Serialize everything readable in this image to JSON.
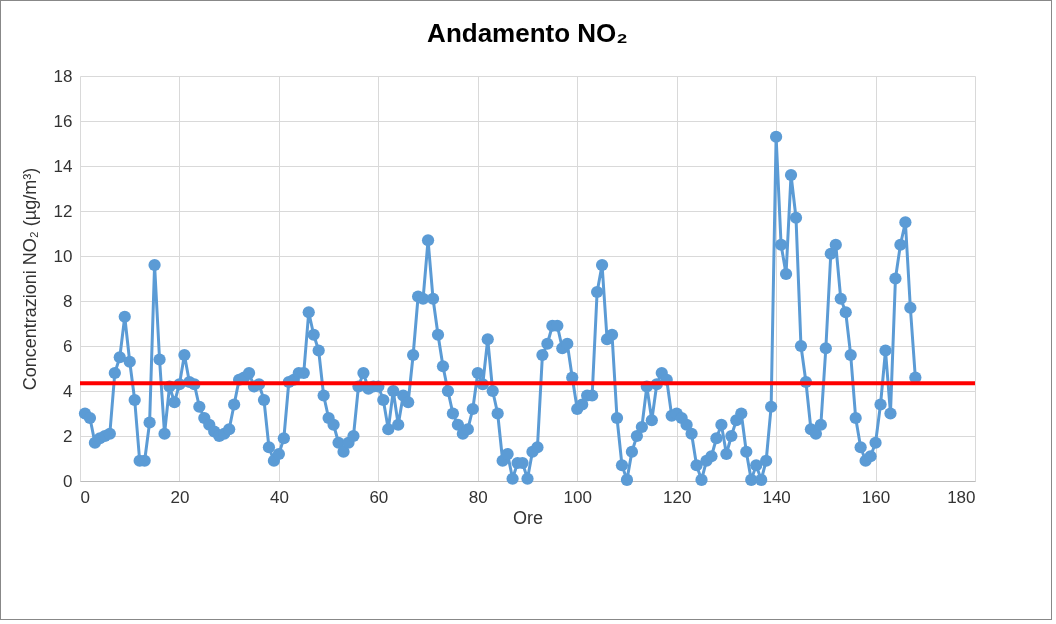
{
  "chart_data": {
    "type": "line",
    "title": "Andamento NO₂",
    "xlabel": "Ore",
    "ylabel": "Concentrazioni NO₂ (µg/m³)",
    "x": [
      1,
      2,
      3,
      4,
      5,
      6,
      7,
      8,
      9,
      10,
      11,
      12,
      13,
      14,
      15,
      16,
      17,
      18,
      19,
      20,
      21,
      22,
      23,
      24,
      25,
      26,
      27,
      28,
      29,
      30,
      31,
      32,
      33,
      34,
      35,
      36,
      37,
      38,
      39,
      40,
      41,
      42,
      43,
      44,
      45,
      46,
      47,
      48,
      49,
      50,
      51,
      52,
      53,
      54,
      55,
      56,
      57,
      58,
      59,
      60,
      61,
      62,
      63,
      64,
      65,
      66,
      67,
      68,
      69,
      70,
      71,
      72,
      73,
      74,
      75,
      76,
      77,
      78,
      79,
      80,
      81,
      82,
      83,
      84,
      85,
      86,
      87,
      88,
      89,
      90,
      91,
      92,
      93,
      94,
      95,
      96,
      97,
      98,
      99,
      100,
      101,
      102,
      103,
      104,
      105,
      106,
      107,
      108,
      109,
      110,
      111,
      112,
      113,
      114,
      115,
      116,
      117,
      118,
      119,
      120,
      121,
      122,
      123,
      124,
      125,
      126,
      127,
      128,
      129,
      130,
      131,
      132,
      133,
      134,
      135,
      136,
      137,
      138,
      139,
      140,
      141,
      142,
      143,
      144,
      145,
      146,
      147,
      148,
      149,
      150,
      151,
      152,
      153,
      154,
      155,
      156,
      157,
      158,
      159,
      160,
      161,
      162,
      163,
      164,
      165,
      166,
      167,
      168
    ],
    "series": [
      {
        "color": "#5b9bd5",
        "values": [
          3.0,
          2.8,
          1.7,
          1.9,
          2.0,
          2.1,
          4.8,
          5.5,
          7.3,
          5.3,
          3.6,
          0.9,
          0.9,
          2.6,
          9.6,
          5.4,
          2.1,
          4.2,
          3.5,
          4.3,
          5.6,
          4.4,
          4.3,
          3.3,
          2.8,
          2.5,
          2.2,
          2.0,
          2.1,
          2.3,
          3.4,
          4.5,
          4.6,
          4.8,
          4.2,
          4.3,
          3.6,
          1.5,
          0.9,
          1.2,
          1.9,
          4.4,
          4.5,
          4.8,
          4.8,
          7.5,
          6.5,
          5.8,
          3.8,
          2.8,
          2.5,
          1.7,
          1.3,
          1.7,
          2.0,
          4.2,
          4.8,
          4.1,
          4.2,
          4.2,
          3.6,
          2.3,
          4.0,
          2.5,
          3.8,
          3.5,
          5.6,
          8.2,
          8.1,
          10.7,
          8.1,
          6.5,
          5.1,
          4.0,
          3.0,
          2.5,
          2.1,
          2.3,
          3.2,
          4.8,
          4.3,
          6.3,
          4.0,
          3.0,
          0.9,
          1.2,
          0.1,
          0.8,
          0.8,
          0.1,
          1.3,
          1.5,
          5.6,
          6.1,
          6.9,
          6.9,
          5.9,
          6.1,
          4.6,
          3.2,
          3.4,
          3.8,
          3.8,
          8.4,
          9.6,
          6.3,
          6.5,
          2.8,
          0.7,
          0.05,
          1.3,
          2.0,
          2.4,
          4.2,
          2.7,
          4.3,
          4.8,
          4.5,
          2.9,
          3.0,
          2.8,
          2.5,
          2.1,
          0.7,
          0.05,
          0.9,
          1.1,
          1.9,
          2.5,
          1.2,
          2.0,
          2.7,
          3.0,
          1.3,
          0.05,
          0.7,
          0.05,
          0.9,
          3.3,
          15.3,
          10.5,
          9.2,
          13.6,
          11.7,
          6.0,
          4.4,
          2.3,
          2.1,
          2.5,
          5.9,
          10.1,
          10.5,
          8.1,
          7.5,
          5.6,
          2.8,
          1.5,
          0.9,
          1.1,
          1.7,
          3.4,
          5.8,
          3.0,
          9.0,
          10.5,
          11.5,
          7.7,
          4.6
        ]
      }
    ],
    "xlim": [
      0,
      180
    ],
    "xticks": [
      0,
      20,
      40,
      60,
      80,
      100,
      120,
      140,
      160,
      180
    ],
    "ylim": [
      0,
      18
    ],
    "yticks": [
      0,
      2,
      4,
      6,
      8,
      10,
      12,
      14,
      16,
      18
    ],
    "ref_lines": [
      {
        "axis": "y",
        "value": 4.35,
        "color": "#ff0000"
      }
    ],
    "grid": true,
    "marker": "circle",
    "line_style": "solid"
  }
}
